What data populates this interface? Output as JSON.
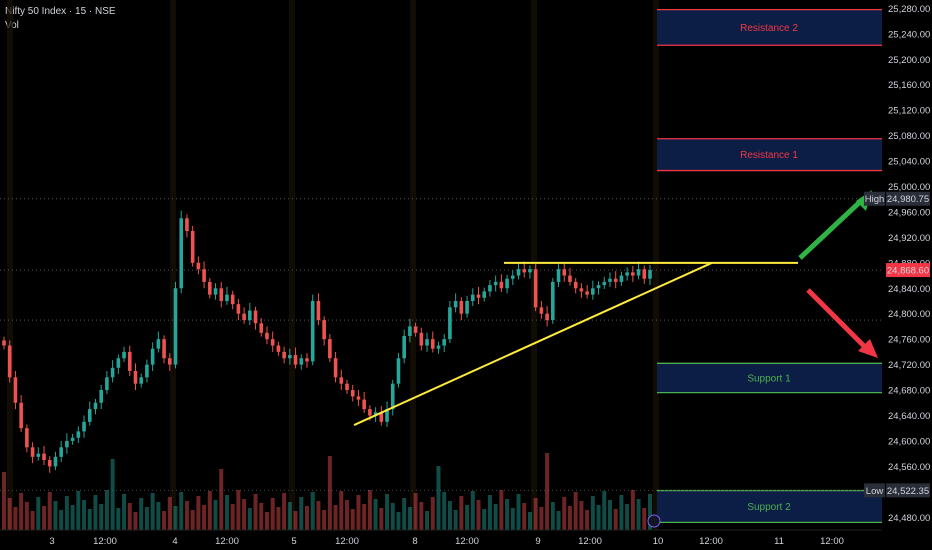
{
  "header": {
    "symbol": "Nifty 50 Index · 15 · NSE",
    "volume_label": "Vol"
  },
  "colors": {
    "up": "#26a69a",
    "down": "#ef5350",
    "trendline": "#ffeb3b",
    "resistance_border": "#f23645",
    "support_border": "#4caf50",
    "zone_fill": "#0c1e45",
    "arrow_up": "#2fb344",
    "arrow_down": "#f23645"
  },
  "chart_data": {
    "type": "candlestick",
    "ylim": [
      24460,
      25290
    ],
    "y_ticks": [
      "25,280.00",
      "25,240.00",
      "25,200.00",
      "25,160.00",
      "25,120.00",
      "25,080.00",
      "25,040.00",
      "25,000.00",
      "24,960.00",
      "24,920.00",
      "24,880.00",
      "24,840.00",
      "24,800.00",
      "24,760.00",
      "24,720.00",
      "24,680.00",
      "24,640.00",
      "24,600.00",
      "24,560.00",
      "24,520.00",
      "24,480.00"
    ],
    "x_ticks": [
      "3",
      "12:00",
      "4",
      "12:00",
      "5",
      "12:00",
      "8",
      "12:00",
      "9",
      "12:00",
      "10",
      "12:00",
      "11",
      "12:00"
    ],
    "price_labels": [
      {
        "tag": "High",
        "value": "24,980.75",
        "price": 24980.75
      },
      {
        "tag": "",
        "value": "24,868.60",
        "price": 24868.6
      },
      {
        "tag": "Low",
        "value": "24,522.35",
        "price": 24522.35
      }
    ],
    "zones": [
      {
        "label": "Resistance 2",
        "top": 25278,
        "bottom": 25222,
        "kind": "resistance"
      },
      {
        "label": "Resistance 1",
        "top": 25075,
        "bottom": 25025,
        "kind": "resistance"
      },
      {
        "label": "Support 1",
        "top": 24722,
        "bottom": 24676,
        "kind": "support"
      },
      {
        "label": "Support 2",
        "top": 24522,
        "bottom": 24472,
        "kind": "support"
      }
    ],
    "closes": [
      24750,
      24700,
      24660,
      24620,
      24590,
      24575,
      24580,
      24570,
      24560,
      24575,
      24590,
      24600,
      24605,
      24615,
      24630,
      24650,
      24660,
      24680,
      24700,
      24715,
      24730,
      24740,
      24710,
      24690,
      24700,
      24720,
      24745,
      24760,
      24730,
      24720,
      24840,
      24950,
      24930,
      24880,
      24870,
      24850,
      24830,
      24840,
      24820,
      24830,
      24815,
      24800,
      24790,
      24805,
      24785,
      24770,
      24760,
      24750,
      24740,
      24730,
      24735,
      24720,
      24730,
      24725,
      24820,
      24790,
      24760,
      24730,
      24700,
      24690,
      24680,
      24670,
      24665,
      24650,
      24640,
      24645,
      24630,
      24650,
      24690,
      24730,
      24765,
      24780,
      24770,
      24750,
      24760,
      24745,
      24750,
      24760,
      24810,
      24820,
      24800,
      24820,
      24830,
      24825,
      24835,
      24845,
      24850,
      24840,
      24855,
      24860,
      24870,
      24865,
      24870,
      24810,
      24800,
      24790,
      24850,
      24870,
      24860,
      24850,
      24840,
      24835,
      24830,
      24840,
      24845,
      24850,
      24855,
      24850,
      24860,
      24865,
      24860,
      24870,
      24855,
      24868.6
    ],
    "trendlines": [
      {
        "from": [
          354,
          24625
        ],
        "to": [
          712,
          24880
        ]
      },
      {
        "from": [
          504,
          24880
        ],
        "to": [
          798,
          24880
        ]
      }
    ]
  }
}
